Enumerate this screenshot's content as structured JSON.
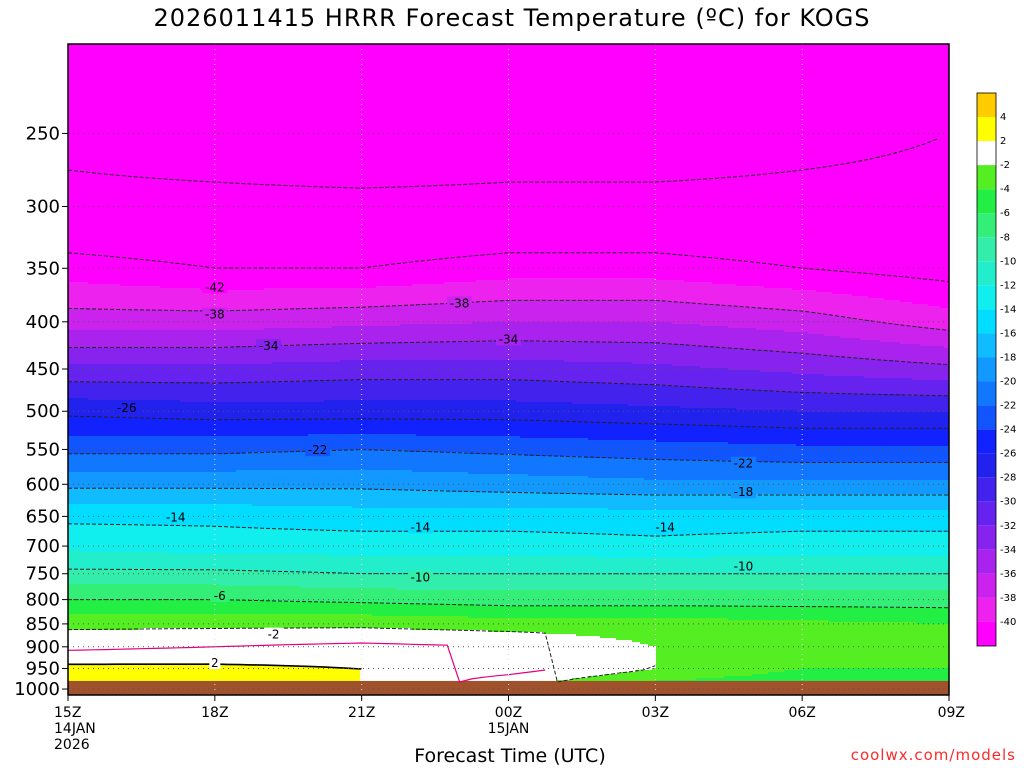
{
  "title": "2026011415 HRRR Forecast Temperature (ºC) for KOGS",
  "credit": "coolwx.com/models",
  "colors": {
    "ground": "#a0522d",
    "warm_line": "#e6007e",
    "freezing_contour": "#000000",
    "contour": "#222222"
  },
  "chart_data": {
    "type": "heatmap",
    "title": "2026011415 HRRR Forecast Temperature (ºC) for KOGS",
    "xlabel": "Forecast Time (UTC)",
    "ylabel": "",
    "x_unit": "forecast hour from 15Z 14JAN 2026",
    "xlim": [
      0,
      18
    ],
    "x_ticks": [
      {
        "hour": 0,
        "lines": [
          "15Z",
          "14JAN",
          "2026"
        ]
      },
      {
        "hour": 3,
        "lines": [
          "18Z"
        ]
      },
      {
        "hour": 6,
        "lines": [
          "21Z"
        ]
      },
      {
        "hour": 9,
        "lines": [
          "00Z",
          "15JAN"
        ]
      },
      {
        "hour": 12,
        "lines": [
          "03Z"
        ]
      },
      {
        "hour": 15,
        "lines": [
          "06Z"
        ]
      },
      {
        "hour": 18,
        "lines": [
          "09Z"
        ]
      }
    ],
    "y_unit": "hPa",
    "y_axis_scale": "pressure (log), top 200 hPa, bottom 1015 hPa",
    "ylim": [
      1015,
      200
    ],
    "y_ticks": [
      250,
      300,
      350,
      400,
      450,
      500,
      550,
      600,
      650,
      700,
      750,
      800,
      850,
      900,
      950,
      1000
    ],
    "grid": true,
    "ground_pressure_hpa": 980,
    "colorbar": {
      "ticks": [
        "4",
        "2",
        "-2",
        "-4",
        "-6",
        "-8",
        "-10",
        "-12",
        "-14",
        "-16",
        "-18",
        "-20",
        "-22",
        "-24",
        "-26",
        "-28",
        "-30",
        "-32",
        "-34",
        "-36",
        "-38",
        "-40"
      ],
      "bins": [
        {
          "range": [
            4,
            6
          ],
          "color": "#ffcc00"
        },
        {
          "range": [
            2,
            4
          ],
          "color": "#ffff00"
        },
        {
          "range": [
            -2,
            2
          ],
          "color": "#ffffff"
        },
        {
          "range": [
            -4,
            -2
          ],
          "color": "#55ee22"
        },
        {
          "range": [
            -6,
            -4
          ],
          "color": "#22ee44"
        },
        {
          "range": [
            -8,
            -6
          ],
          "color": "#33ee77"
        },
        {
          "range": [
            -10,
            -8
          ],
          "color": "#33eeaa"
        },
        {
          "range": [
            -12,
            -10
          ],
          "color": "#22eecc"
        },
        {
          "range": [
            -14,
            -12
          ],
          "color": "#11eeee"
        },
        {
          "range": [
            -16,
            -14
          ],
          "color": "#00ddff"
        },
        {
          "range": [
            -18,
            -16
          ],
          "color": "#11bbff"
        },
        {
          "range": [
            -20,
            -18
          ],
          "color": "#1199ff"
        },
        {
          "range": [
            -22,
            -20
          ],
          "color": "#1177ff"
        },
        {
          "range": [
            -24,
            -22
          ],
          "color": "#1155ff"
        },
        {
          "range": [
            -26,
            -24
          ],
          "color": "#1122ff"
        },
        {
          "range": [
            -28,
            -26
          ],
          "color": "#2222ee"
        },
        {
          "range": [
            -30,
            -28
          ],
          "color": "#4422ee"
        },
        {
          "range": [
            -32,
            -30
          ],
          "color": "#6622ee"
        },
        {
          "range": [
            -34,
            -32
          ],
          "color": "#8822ee"
        },
        {
          "range": [
            -36,
            -34
          ],
          "color": "#aa22ee"
        },
        {
          "range": [
            -38,
            -36
          ],
          "color": "#cc22ee"
        },
        {
          "range": [
            -40,
            -38
          ],
          "color": "#ee22ee"
        },
        {
          "range": [
            -44,
            -40
          ],
          "color": "#ff00ff"
        }
      ]
    },
    "profile_hours": [
      0,
      3,
      6,
      9,
      12,
      15,
      18
    ],
    "profiles": [
      {
        "p": 980,
        "t": [
          3,
          3,
          2,
          -1,
          -4,
          -5,
          -5
        ]
      },
      {
        "p": 950,
        "t": [
          2.6,
          2.5,
          2,
          1,
          -2,
          -4,
          -4
        ]
      },
      {
        "p": 900,
        "t": [
          -0.5,
          0,
          0.5,
          0,
          -2,
          -3,
          -3
        ]
      },
      {
        "p": 850,
        "t": [
          -2.5,
          -2.5,
          -2.5,
          -3,
          -3,
          -3.5,
          -4
        ]
      },
      {
        "p": 800,
        "t": [
          -6,
          -6,
          -6.5,
          -7,
          -7,
          -7,
          -7
        ]
      },
      {
        "p": 750,
        "t": [
          -9.5,
          -9.5,
          -10,
          -10,
          -10,
          -10,
          -10
        ]
      },
      {
        "p": 700,
        "t": [
          -12.5,
          -13,
          -13,
          -13,
          -13.5,
          -13,
          -13
        ]
      },
      {
        "p": 650,
        "t": [
          -14.5,
          -14.5,
          -15,
          -15,
          -15,
          -15,
          -15
        ]
      },
      {
        "p": 600,
        "t": [
          -18.5,
          -18.5,
          -18.5,
          -19,
          -19.5,
          -19.5,
          -19.5
        ]
      },
      {
        "p": 550,
        "t": [
          -22.5,
          -22.5,
          -22,
          -22.5,
          -23,
          -23.5,
          -23.5
        ]
      },
      {
        "p": 500,
        "t": [
          -26.5,
          -27,
          -27,
          -27,
          -27.5,
          -28,
          -28
        ]
      },
      {
        "p": 450,
        "t": [
          -31.5,
          -31.5,
          -31,
          -31,
          -31.5,
          -32.5,
          -33.5
        ]
      },
      {
        "p": 400,
        "t": [
          -37,
          -37,
          -36.5,
          -36,
          -36,
          -37,
          -39
        ]
      },
      {
        "p": 350,
        "t": [
          -41,
          -42,
          -42,
          -41,
          -41,
          -42,
          -43
        ]
      },
      {
        "p": 300,
        "t": [
          -45,
          -45,
          -45,
          -45,
          -45,
          -45,
          -45
        ]
      },
      {
        "p": 250,
        "t": [
          -47,
          -48,
          -49,
          -48,
          -48,
          -47,
          -46
        ]
      },
      {
        "p": 200,
        "t": [
          -47,
          -48,
          -49,
          -48,
          -47,
          -46,
          -45
        ]
      }
    ],
    "contour_labels": [
      {
        "text": "-42",
        "hour": 3,
        "p": 367
      },
      {
        "text": "-38",
        "hour": 3,
        "p": 393
      },
      {
        "text": "-38",
        "hour": 8,
        "p": 382
      },
      {
        "text": "-34",
        "hour": 4.1,
        "p": 425
      },
      {
        "text": "-34",
        "hour": 9,
        "p": 418
      },
      {
        "text": "-26",
        "hour": 1.2,
        "p": 496
      },
      {
        "text": "-22",
        "hour": 5.1,
        "p": 551
      },
      {
        "text": "-22",
        "hour": 13.8,
        "p": 570
      },
      {
        "text": "-18",
        "hour": 13.8,
        "p": 612
      },
      {
        "text": "-14",
        "hour": 2.2,
        "p": 652
      },
      {
        "text": "-14",
        "hour": 7.2,
        "p": 668
      },
      {
        "text": "-14",
        "hour": 12.2,
        "p": 668
      },
      {
        "text": "-10",
        "hour": 7.2,
        "p": 757
      },
      {
        "text": "-10",
        "hour": 13.8,
        "p": 737
      },
      {
        "text": "-6",
        "hour": 3.1,
        "p": 793
      },
      {
        "text": "-2",
        "hour": 4.2,
        "p": 873
      },
      {
        "text": "2",
        "hour": 3,
        "p": 937
      }
    ]
  }
}
